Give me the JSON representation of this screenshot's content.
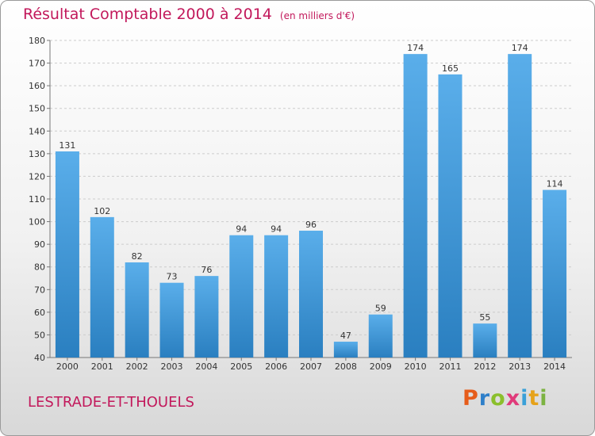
{
  "header": {
    "title": "Résultat Comptable 2000 à 2014",
    "unit": "(en milliers d'€)"
  },
  "footer": {
    "commune": "LESTRADE-ET-THOUELS",
    "logo": [
      "P",
      "r",
      "o",
      "x",
      "i",
      "t",
      "i"
    ],
    "logo_colors": [
      "#e65c1a",
      "#2e7fc9",
      "#8bbf2c",
      "#e03a7a",
      "#3aa0d8",
      "#e6a21a",
      "#7cb342"
    ]
  },
  "colors": {
    "title": "#c2185b",
    "bar_top": "#5aaeea",
    "bar_bottom": "#2a7fc0",
    "grid": "#cccccc",
    "axis_text": "#333333"
  },
  "chart_data": {
    "type": "bar",
    "title": "Résultat Comptable 2000 à 2014",
    "subtitle": "(en milliers d'€)",
    "xlabel": "",
    "ylabel": "",
    "categories": [
      "2000",
      "2001",
      "2002",
      "2003",
      "2004",
      "2005",
      "2006",
      "2007",
      "2008",
      "2009",
      "2010",
      "2011",
      "2012",
      "2013",
      "2014"
    ],
    "values": [
      131,
      102,
      82,
      73,
      76,
      94,
      94,
      96,
      47,
      59,
      174,
      165,
      55,
      174,
      114
    ],
    "ylim": [
      40,
      180
    ],
    "yticks": [
      40,
      50,
      60,
      70,
      80,
      90,
      100,
      110,
      120,
      130,
      140,
      150,
      160,
      170,
      180
    ],
    "grid": true,
    "legend": "none"
  }
}
